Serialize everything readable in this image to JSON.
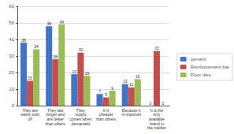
{
  "chart_data": {
    "type": "bar",
    "categories": [
      "They are\neasily sold\noff",
      "They last\nlonger and\nare better\nthan others",
      "They\nsupply\ncomes when\ndemanded",
      "It is\ncheaper\nthan others",
      "Because it\nis imported",
      "It is the\nonly\navailable\nbrand in\nthe market"
    ],
    "series": [
      {
        "name": "cement",
        "color": "#4472C4",
        "values": [
          38,
          48,
          19,
          7,
          13,
          0
        ]
      },
      {
        "name": "Reinforcement bar",
        "color": "#C0504D",
        "values": [
          15,
          28,
          32,
          5,
          11,
          33
        ]
      },
      {
        "name": "Floor tiles",
        "color": "#9BBB59",
        "values": [
          34,
          49,
          18,
          9,
          16,
          0
        ]
      }
    ],
    "ylim": [
      0,
      60
    ],
    "yticks": [
      0,
      10,
      20,
      30,
      40,
      50,
      60
    ],
    "grid": true,
    "legend": "right",
    "data_labels": true
  }
}
